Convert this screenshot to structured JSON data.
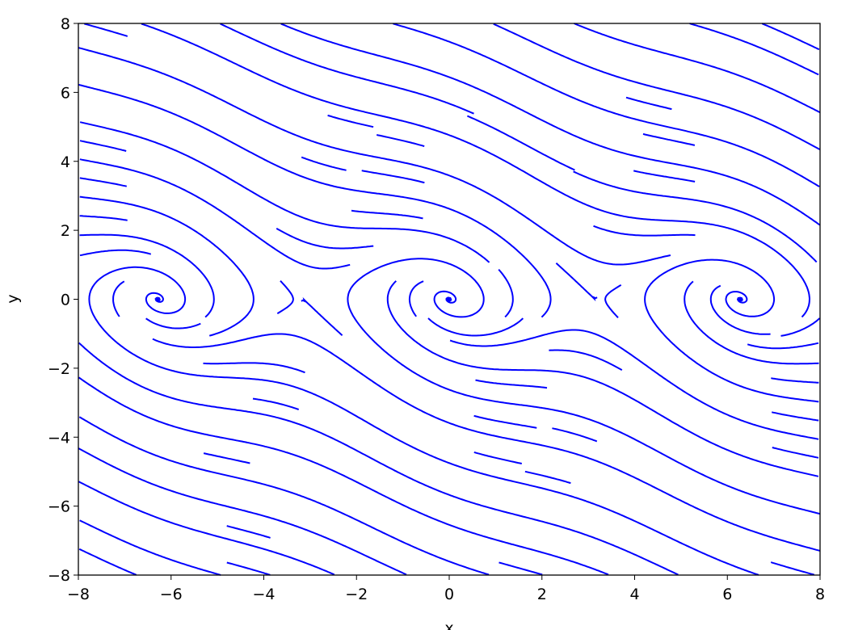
{
  "chart_data": {
    "type": "streamplot",
    "field": {
      "u": "y",
      "v": "-sin(x) - 0.5*y"
    },
    "title": "",
    "xlabel": "x",
    "ylabel": "y",
    "xlim": [
      -8,
      8
    ],
    "ylim": [
      -8,
      8
    ],
    "xticks": [
      "−8",
      "−6",
      "−4",
      "−2",
      "0",
      "2",
      "4",
      "6",
      "8"
    ],
    "yticks": [
      "−8",
      "−6",
      "−4",
      "−2",
      "0",
      "2",
      "4",
      "6",
      "8"
    ],
    "xtick_values": [
      -8,
      -6,
      -4,
      -2,
      0,
      2,
      4,
      6,
      8
    ],
    "ytick_values": [
      -8,
      -6,
      -4,
      -2,
      0,
      2,
      4,
      6,
      8
    ],
    "grid": false,
    "line_color": "#0000ff"
  }
}
